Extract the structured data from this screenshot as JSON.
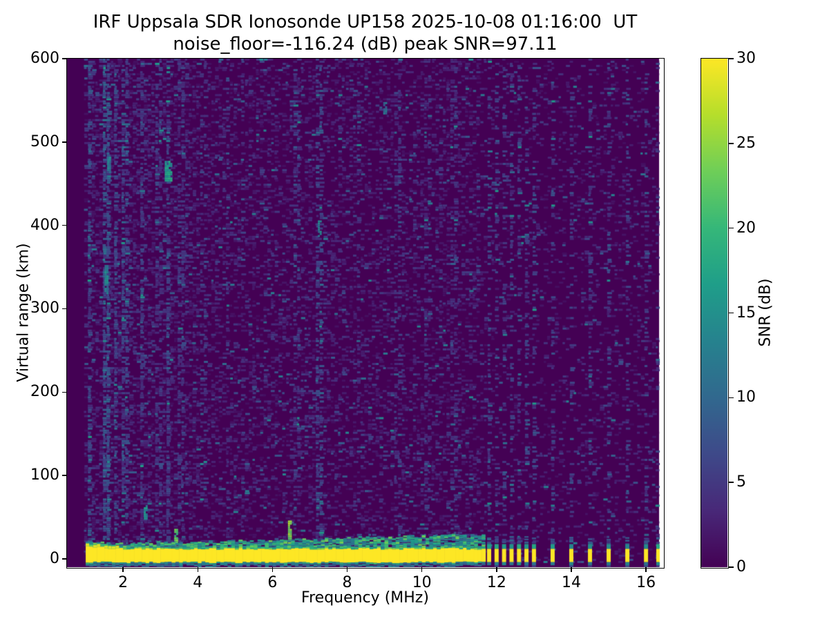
{
  "figure": {
    "background": "#ffffff",
    "frame_color": "#000000"
  },
  "chart_data": {
    "type": "heatmap",
    "title": "IRF Uppsala SDR Ionosonde UP158 2025-10-08 01:16:00  UT",
    "subtitle": "noise_floor=-116.24 (dB) peak SNR=97.11",
    "station": "UP158",
    "timestamp_ut": "2025-10-08 01:16:00",
    "noise_floor_db": -116.24,
    "peak_snr_db": 97.11,
    "xlabel": "Frequency (MHz)",
    "ylabel": "Virtual range (km)",
    "xlim": [
      0.5,
      16.46
    ],
    "ylim": [
      -10,
      600
    ],
    "x_ticks": [
      2,
      4,
      6,
      8,
      10,
      12,
      14,
      16
    ],
    "y_ticks": [
      0,
      100,
      200,
      300,
      400,
      500,
      600
    ],
    "grid": false,
    "legend": "none",
    "colorbar": {
      "label": "SNR (dB)",
      "min": 0,
      "max": 30,
      "ticks": [
        0,
        5,
        10,
        15,
        20,
        25,
        30
      ],
      "colormap": "viridis",
      "colors": [
        "#440154",
        "#482878",
        "#3e4989",
        "#31688e",
        "#26828e",
        "#1f9e89",
        "#35b779",
        "#6ece58",
        "#b5de2b",
        "#fde725"
      ]
    },
    "heatmap": {
      "freq_range_mhz": [
        0.95,
        16.35
      ],
      "background_snr_db": 0,
      "noise_speckle_db": [
        1,
        15
      ],
      "ground_return": {
        "description": "saturated 0-km transmit/ground return band",
        "snr_db": 30,
        "band_top_km": 12,
        "band_bottom_km": -4,
        "continuous_mhz": [
          1.0,
          11.65
        ],
        "pulse_mhz": [
          11.8,
          12.0,
          12.2,
          12.4,
          12.6,
          12.8,
          13.0,
          13.5,
          14.0,
          14.5,
          15.0,
          15.5,
          16.0,
          16.33
        ]
      },
      "rfi_stripes_mhz": [
        {
          "f": 1.08,
          "s": 1.1
        },
        {
          "f": 1.55,
          "s": 1.6
        },
        {
          "f": 1.78,
          "s": 1.1
        },
        {
          "f": 2.07,
          "s": 1.0
        },
        {
          "f": 2.5,
          "s": 0.8
        },
        {
          "f": 2.95,
          "s": 0.6
        },
        {
          "f": 3.2,
          "s": 1.0
        },
        {
          "f": 3.55,
          "s": 0.6
        },
        {
          "f": 4.16,
          "s": 0.5
        },
        {
          "f": 4.8,
          "s": 0.4
        },
        {
          "f": 5.2,
          "s": 0.4
        },
        {
          "f": 6.66,
          "s": 0.6
        },
        {
          "f": 7.25,
          "s": 1.0
        },
        {
          "f": 8.3,
          "s": 0.4
        },
        {
          "f": 9.35,
          "s": 0.5
        },
        {
          "f": 10.16,
          "s": 0.4
        },
        {
          "f": 10.85,
          "s": 0.4
        },
        {
          "f": 11.8,
          "s": 0.9
        },
        {
          "f": 12.0,
          "s": 0.9
        },
        {
          "f": 12.2,
          "s": 0.9
        },
        {
          "f": 12.4,
          "s": 0.9
        },
        {
          "f": 12.6,
          "s": 0.9
        },
        {
          "f": 12.8,
          "s": 0.9
        },
        {
          "f": 13.0,
          "s": 0.9
        },
        {
          "f": 13.5,
          "s": 0.85
        },
        {
          "f": 14.0,
          "s": 0.85
        },
        {
          "f": 14.5,
          "s": 0.85
        },
        {
          "f": 15.0,
          "s": 0.85
        },
        {
          "f": 15.5,
          "s": 0.85
        },
        {
          "f": 16.0,
          "s": 0.85
        },
        {
          "f": 16.3,
          "s": 0.5
        }
      ],
      "hot_spots": [
        {
          "f": 3.2,
          "km": 465,
          "df": 0.17,
          "dkm": 25,
          "db": 16
        },
        {
          "f": 1.55,
          "km": 335,
          "df": 0.09,
          "dkm": 35,
          "db": 13
        },
        {
          "f": 1.62,
          "km": 470,
          "df": 0.09,
          "dkm": 25,
          "db": 12
        },
        {
          "f": 2.6,
          "km": 55,
          "df": 0.09,
          "dkm": 16,
          "db": 14
        },
        {
          "f": 7.25,
          "km": 395,
          "df": 0.07,
          "dkm": 18,
          "db": 12
        },
        {
          "f": 9.0,
          "km": 540,
          "df": 0.07,
          "dkm": 14,
          "db": 11
        },
        {
          "f": 6.45,
          "km": 30,
          "df": 0.07,
          "dkm": 28,
          "db": 24
        },
        {
          "f": 3.4,
          "km": 25,
          "df": 0.06,
          "dkm": 18,
          "db": 22
        }
      ]
    }
  }
}
